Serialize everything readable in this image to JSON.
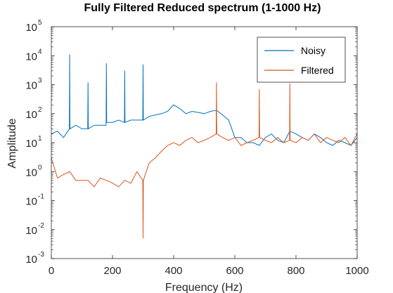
{
  "chart_data": {
    "type": "line",
    "title": "Fully Filtered Reduced spectrum (1-1000 Hz)",
    "xlabel": "Frequency (Hz)",
    "ylabel": "Amplitude",
    "xlim": [
      0,
      1000
    ],
    "ylim": [
      0.001,
      100000
    ],
    "yscale": "log",
    "grid": false,
    "legend_position": "top-right",
    "x_ticks": [
      "0",
      "200",
      "400",
      "600",
      "800",
      "1000"
    ],
    "y_ticks": [
      {
        "base": "10",
        "exp": "-3"
      },
      {
        "base": "10",
        "exp": "-2"
      },
      {
        "base": "10",
        "exp": "-1"
      },
      {
        "base": "10",
        "exp": "0"
      },
      {
        "base": "10",
        "exp": "1"
      },
      {
        "base": "10",
        "exp": "2"
      },
      {
        "base": "10",
        "exp": "3"
      },
      {
        "base": "10",
        "exp": "4"
      },
      {
        "base": "10",
        "exp": "5"
      }
    ],
    "series": [
      {
        "name": "Noisy",
        "color": "#0072BD",
        "x": [
          0,
          20,
          40,
          59,
          60,
          61,
          80,
          100,
          119,
          120,
          121,
          140,
          160,
          179,
          180,
          181,
          200,
          220,
          239,
          240,
          241,
          260,
          280,
          299,
          300,
          301,
          320,
          340,
          360,
          380,
          400,
          420,
          440,
          460,
          480,
          500,
          520,
          540,
          560,
          580,
          600,
          620,
          640,
          660,
          680,
          700,
          720,
          740,
          760,
          780,
          800,
          820,
          840,
          860,
          880,
          900,
          920,
          940,
          960,
          980,
          1000
        ],
        "y": [
          20,
          25,
          15,
          30,
          11000,
          30,
          40,
          30,
          30,
          1200,
          30,
          40,
          40,
          40,
          5500,
          50,
          50,
          60,
          50,
          3000,
          50,
          60,
          60,
          60,
          5000,
          60,
          80,
          90,
          100,
          120,
          200,
          150,
          100,
          120,
          110,
          100,
          120,
          130,
          90,
          60,
          15,
          15,
          10,
          10,
          8,
          15,
          20,
          12,
          10,
          25,
          20,
          15,
          12,
          20,
          15,
          10,
          8,
          12,
          10,
          8,
          15
        ]
      },
      {
        "name": "Filtered",
        "color": "#D95319",
        "x": [
          0,
          20,
          40,
          60,
          80,
          100,
          120,
          140,
          160,
          180,
          200,
          220,
          240,
          260,
          280,
          299,
          300,
          301,
          320,
          340,
          360,
          380,
          400,
          420,
          440,
          460,
          480,
          500,
          520,
          539,
          540,
          541,
          560,
          580,
          600,
          620,
          640,
          660,
          679,
          680,
          681,
          700,
          720,
          740,
          760,
          779,
          780,
          781,
          800,
          820,
          840,
          860,
          880,
          900,
          920,
          940,
          960,
          980,
          1000
        ],
        "y": [
          3,
          0.6,
          0.8,
          1.0,
          0.5,
          0.5,
          0.5,
          0.3,
          0.6,
          0.5,
          0.4,
          0.3,
          0.5,
          0.4,
          1.0,
          0.5,
          0.005,
          0.5,
          2,
          3,
          5,
          8,
          10,
          8,
          12,
          15,
          10,
          12,
          15,
          20,
          1200,
          20,
          15,
          12,
          15,
          8,
          10,
          12,
          15,
          700,
          15,
          12,
          10,
          15,
          10,
          12,
          1100,
          12,
          10,
          15,
          12,
          20,
          10,
          15,
          12,
          10,
          15,
          8,
          20
        ]
      }
    ]
  }
}
